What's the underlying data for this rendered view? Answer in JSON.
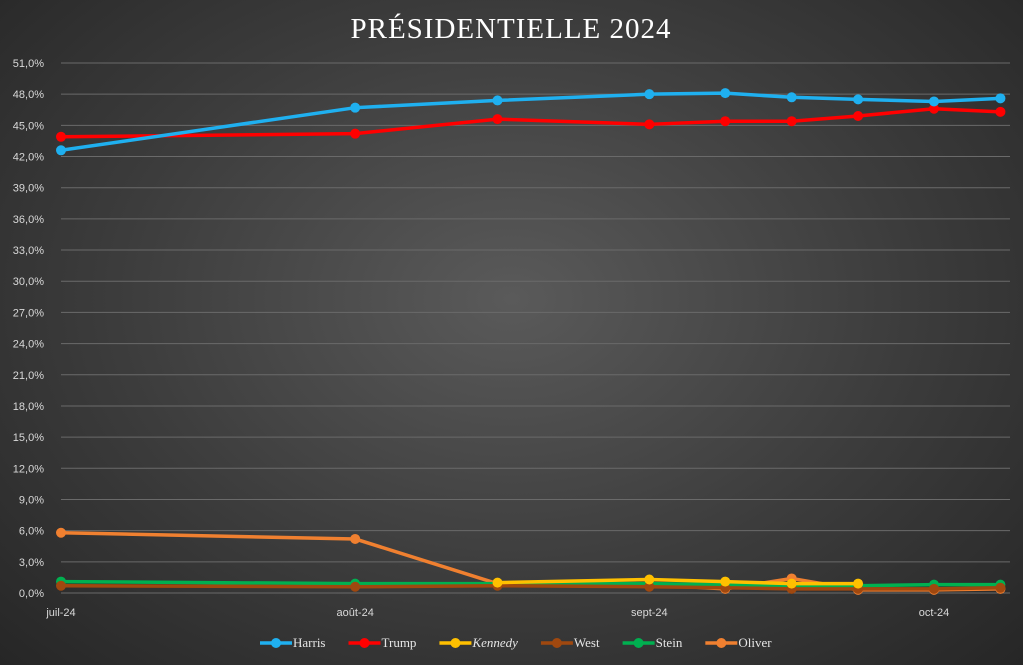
{
  "chart_data": {
    "type": "line",
    "title": "PRÉSIDENTIELLE 2024",
    "xlabel": "",
    "ylabel": "",
    "x": [
      "2024-07-01",
      "2024-08-01",
      "2024-08-16",
      "2024-09-01",
      "2024-09-09",
      "2024-09-16",
      "2024-09-23",
      "2024-10-01",
      "2024-10-08"
    ],
    "x_ticks": [
      {
        "date": "2024-07-01",
        "label": "juil-24"
      },
      {
        "date": "2024-08-01",
        "label": "août-24"
      },
      {
        "date": "2024-09-01",
        "label": "sept-24"
      },
      {
        "date": "2024-10-01",
        "label": "oct-24"
      }
    ],
    "ylim": [
      0,
      51
    ],
    "y_ticks": [
      "0,0%",
      "3,0%",
      "6,0%",
      "9,0%",
      "12,0%",
      "15,0%",
      "18,0%",
      "21,0%",
      "24,0%",
      "27,0%",
      "30,0%",
      "33,0%",
      "36,0%",
      "39,0%",
      "42,0%",
      "45,0%",
      "48,0%",
      "51,0%"
    ],
    "grid": true,
    "legend_position": "bottom",
    "series": [
      {
        "name": "Harris",
        "color": "#1fb0f0",
        "italic": false,
        "values": [
          42.6,
          46.7,
          47.4,
          48.0,
          48.1,
          47.7,
          47.5,
          47.3,
          47.6
        ]
      },
      {
        "name": "Trump",
        "color": "#ff0000",
        "italic": false,
        "values": [
          43.9,
          44.2,
          45.6,
          45.1,
          45.4,
          45.4,
          45.9,
          46.6,
          46.3
        ]
      },
      {
        "name": "Kennedy",
        "color": "#ffc000",
        "italic": true,
        "values": [
          null,
          null,
          1.0,
          1.3,
          1.1,
          0.9,
          0.9,
          null,
          null
        ]
      },
      {
        "name": "West",
        "color": "#a0480f",
        "italic": false,
        "values": [
          0.7,
          0.6,
          0.7,
          0.6,
          0.5,
          0.4,
          0.4,
          0.4,
          0.5
        ]
      },
      {
        "name": "Stein",
        "color": "#00b050",
        "italic": false,
        "values": [
          1.1,
          0.9,
          0.9,
          0.9,
          0.8,
          0.6,
          0.7,
          0.8,
          0.8
        ]
      },
      {
        "name": "Oliver",
        "color": "#f08030",
        "italic": false,
        "values": [
          5.8,
          5.2,
          0.9,
          0.8,
          0.4,
          1.4,
          0.3,
          0.3,
          0.4
        ]
      }
    ]
  }
}
